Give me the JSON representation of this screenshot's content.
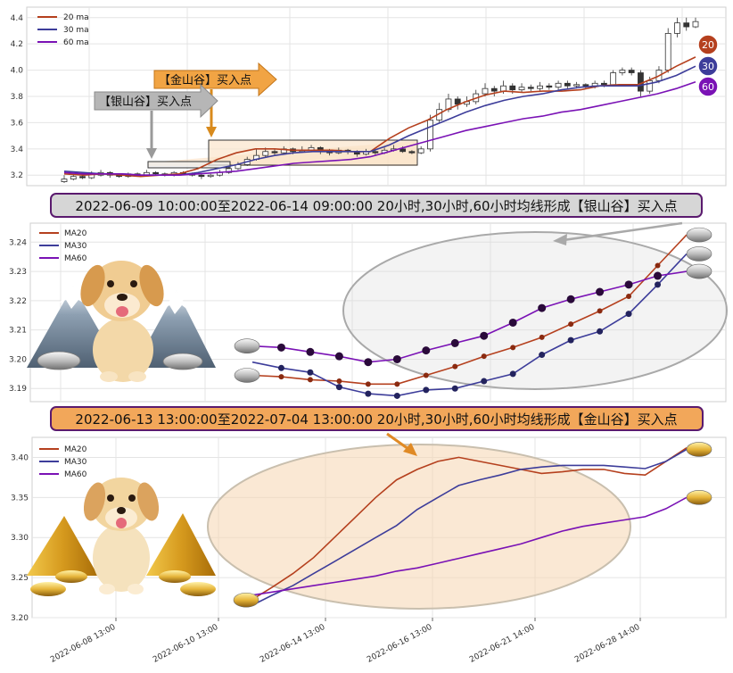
{
  "chart_data": [
    {
      "type": "line",
      "panel": "top",
      "note": "candlestick price with moving averages",
      "y_ticks": [
        "3.2",
        "3.4",
        "3.6",
        "3.8",
        "4.0",
        "4.2",
        "4.4"
      ],
      "ylim": [
        3.12,
        4.48
      ],
      "legend": [
        "20 ma",
        "30 ma",
        "60 ma"
      ],
      "legend_placement": "top-left",
      "grid": true,
      "colors": {
        "ma20": "#b5401e",
        "ma30": "#3d3d9a",
        "ma60": "#7a12b5"
      },
      "annotations": {
        "silver_arrow_label": "【银山谷】买入点",
        "gold_arrow_label": "【金山谷】买入点",
        "badges": [
          "20",
          "30",
          "60"
        ]
      },
      "series": [
        {
          "name": "20 ma",
          "points": [
            [
              0,
              3.21
            ],
            [
              20,
              3.2
            ],
            [
              40,
              3.21
            ],
            [
              60,
              3.2
            ],
            [
              80,
              3.19
            ],
            [
              100,
              3.2
            ],
            [
              120,
              3.21
            ],
            [
              140,
              3.25
            ],
            [
              160,
              3.32
            ],
            [
              180,
              3.37
            ],
            [
              200,
              3.4
            ],
            [
              220,
              3.4
            ],
            [
              240,
              3.39
            ],
            [
              260,
              3.39
            ],
            [
              280,
              3.39
            ],
            [
              300,
              3.38
            ],
            [
              320,
              3.38
            ],
            [
              340,
              3.48
            ],
            [
              360,
              3.56
            ],
            [
              380,
              3.62
            ],
            [
              400,
              3.7
            ],
            [
              420,
              3.76
            ],
            [
              440,
              3.81
            ],
            [
              460,
              3.84
            ],
            [
              480,
              3.83
            ],
            [
              500,
              3.84
            ],
            [
              520,
              3.84
            ],
            [
              540,
              3.85
            ],
            [
              560,
              3.88
            ],
            [
              580,
              3.89
            ],
            [
              600,
              3.89
            ],
            [
              620,
              3.95
            ],
            [
              640,
              4.03
            ],
            [
              660,
              4.1
            ]
          ]
        },
        {
          "name": "30 ma",
          "points": [
            [
              0,
              3.23
            ],
            [
              20,
              3.22
            ],
            [
              40,
              3.21
            ],
            [
              60,
              3.21
            ],
            [
              80,
              3.2
            ],
            [
              100,
              3.2
            ],
            [
              120,
              3.2
            ],
            [
              140,
              3.22
            ],
            [
              160,
              3.25
            ],
            [
              180,
              3.28
            ],
            [
              200,
              3.32
            ],
            [
              220,
              3.35
            ],
            [
              240,
              3.37
            ],
            [
              260,
              3.38
            ],
            [
              280,
              3.38
            ],
            [
              300,
              3.38
            ],
            [
              320,
              3.38
            ],
            [
              340,
              3.43
            ],
            [
              360,
              3.5
            ],
            [
              380,
              3.56
            ],
            [
              400,
              3.62
            ],
            [
              420,
              3.68
            ],
            [
              440,
              3.73
            ],
            [
              460,
              3.77
            ],
            [
              480,
              3.8
            ],
            [
              500,
              3.82
            ],
            [
              520,
              3.85
            ],
            [
              540,
              3.87
            ],
            [
              560,
              3.88
            ],
            [
              580,
              3.88
            ],
            [
              600,
              3.88
            ],
            [
              620,
              3.91
            ],
            [
              640,
              3.96
            ],
            [
              660,
              4.03
            ]
          ]
        },
        {
          "name": "60 ma",
          "points": [
            [
              0,
              3.22
            ],
            [
              20,
              3.21
            ],
            [
              40,
              3.21
            ],
            [
              60,
              3.21
            ],
            [
              80,
              3.2
            ],
            [
              100,
              3.2
            ],
            [
              120,
              3.2
            ],
            [
              140,
              3.21
            ],
            [
              160,
              3.22
            ],
            [
              180,
              3.23
            ],
            [
              200,
              3.25
            ],
            [
              220,
              3.27
            ],
            [
              240,
              3.29
            ],
            [
              260,
              3.3
            ],
            [
              280,
              3.31
            ],
            [
              300,
              3.32
            ],
            [
              320,
              3.34
            ],
            [
              340,
              3.38
            ],
            [
              360,
              3.42
            ],
            [
              380,
              3.46
            ],
            [
              400,
              3.5
            ],
            [
              420,
              3.54
            ],
            [
              440,
              3.57
            ],
            [
              460,
              3.6
            ],
            [
              480,
              3.63
            ],
            [
              500,
              3.65
            ],
            [
              520,
              3.68
            ],
            [
              540,
              3.7
            ],
            [
              560,
              3.73
            ],
            [
              580,
              3.76
            ],
            [
              600,
              3.79
            ],
            [
              620,
              3.82
            ],
            [
              640,
              3.86
            ],
            [
              660,
              3.91
            ]
          ]
        }
      ],
      "candles": [
        [
          3.15,
          3.17,
          3.2,
          3.14
        ],
        [
          3.17,
          3.19,
          3.21,
          3.16
        ],
        [
          3.19,
          3.18,
          3.22,
          3.17
        ],
        [
          3.18,
          3.21,
          3.23,
          3.17
        ],
        [
          3.2,
          3.22,
          3.24,
          3.19
        ],
        [
          3.22,
          3.2,
          3.23,
          3.18
        ],
        [
          3.2,
          3.19,
          3.21,
          3.18
        ],
        [
          3.19,
          3.21,
          3.22,
          3.18
        ],
        [
          3.21,
          3.2,
          3.22,
          3.19
        ],
        [
          3.2,
          3.22,
          3.24,
          3.19
        ],
        [
          3.22,
          3.21,
          3.23,
          3.2
        ],
        [
          3.21,
          3.2,
          3.22,
          3.19
        ],
        [
          3.2,
          3.22,
          3.23,
          3.19
        ],
        [
          3.22,
          3.21,
          3.23,
          3.2
        ],
        [
          3.21,
          3.2,
          3.22,
          3.19
        ],
        [
          3.2,
          3.19,
          3.21,
          3.17
        ],
        [
          3.19,
          3.2,
          3.21,
          3.18
        ],
        [
          3.2,
          3.22,
          3.24,
          3.19
        ],
        [
          3.22,
          3.25,
          3.27,
          3.21
        ],
        [
          3.25,
          3.28,
          3.3,
          3.24
        ],
        [
          3.28,
          3.32,
          3.34,
          3.27
        ],
        [
          3.32,
          3.35,
          3.4,
          3.31
        ],
        [
          3.35,
          3.38,
          3.41,
          3.34
        ],
        [
          3.38,
          3.37,
          3.4,
          3.35
        ],
        [
          3.37,
          3.4,
          3.42,
          3.36
        ],
        [
          3.4,
          3.38,
          3.41,
          3.36
        ],
        [
          3.38,
          3.39,
          3.42,
          3.37
        ],
        [
          3.39,
          3.41,
          3.43,
          3.38
        ],
        [
          3.41,
          3.38,
          3.42,
          3.36
        ],
        [
          3.38,
          3.37,
          3.4,
          3.35
        ],
        [
          3.37,
          3.39,
          3.41,
          3.36
        ],
        [
          3.39,
          3.38,
          3.4,
          3.36
        ],
        [
          3.38,
          3.36,
          3.39,
          3.34
        ],
        [
          3.36,
          3.38,
          3.4,
          3.35
        ],
        [
          3.38,
          3.37,
          3.39,
          3.35
        ],
        [
          3.37,
          3.39,
          3.41,
          3.36
        ],
        [
          3.39,
          3.4,
          3.43,
          3.38
        ],
        [
          3.4,
          3.38,
          3.42,
          3.37
        ],
        [
          3.38,
          3.37,
          3.39,
          3.36
        ],
        [
          3.37,
          3.4,
          3.42,
          3.36
        ],
        [
          3.4,
          3.62,
          3.66,
          3.38
        ],
        [
          3.62,
          3.7,
          3.75,
          3.6
        ],
        [
          3.7,
          3.78,
          3.82,
          3.68
        ],
        [
          3.78,
          3.74,
          3.8,
          3.7
        ],
        [
          3.74,
          3.76,
          3.8,
          3.72
        ],
        [
          3.76,
          3.82,
          3.85,
          3.74
        ],
        [
          3.82,
          3.86,
          3.9,
          3.8
        ],
        [
          3.86,
          3.84,
          3.88,
          3.8
        ],
        [
          3.84,
          3.88,
          3.92,
          3.82
        ],
        [
          3.88,
          3.85,
          3.9,
          3.82
        ],
        [
          3.85,
          3.87,
          3.9,
          3.83
        ],
        [
          3.87,
          3.86,
          3.89,
          3.84
        ],
        [
          3.86,
          3.88,
          3.91,
          3.84
        ],
        [
          3.88,
          3.87,
          3.9,
          3.85
        ],
        [
          3.87,
          3.9,
          3.92,
          3.85
        ],
        [
          3.9,
          3.88,
          3.92,
          3.86
        ],
        [
          3.88,
          3.89,
          3.91,
          3.86
        ],
        [
          3.89,
          3.88,
          3.9,
          3.86
        ],
        [
          3.88,
          3.9,
          3.92,
          3.86
        ],
        [
          3.9,
          3.89,
          3.92,
          3.87
        ],
        [
          3.89,
          3.98,
          4.0,
          3.88
        ],
        [
          3.98,
          4.0,
          4.02,
          3.96
        ],
        [
          4.0,
          3.98,
          4.02,
          3.96
        ],
        [
          3.98,
          3.84,
          4.0,
          3.8
        ],
        [
          3.84,
          3.92,
          3.95,
          3.82
        ],
        [
          3.92,
          4.0,
          4.03,
          3.9
        ],
        [
          4.0,
          4.28,
          4.32,
          3.98
        ],
        [
          4.28,
          4.36,
          4.4,
          4.25
        ],
        [
          4.36,
          4.33,
          4.4,
          4.3
        ],
        [
          4.33,
          4.37,
          4.4,
          4.32
        ]
      ]
    },
    {
      "type": "line",
      "panel": "middle",
      "title": "2022-06-09 10:00:00至2022-06-14 09:00:00 20小时,30小时,60小时均线形成【银山谷】买入点",
      "y_ticks": [
        "3.19",
        "3.20",
        "3.21",
        "3.22",
        "3.23",
        "3.24"
      ],
      "ylim": [
        3.1855,
        3.2465
      ],
      "legend": [
        "MA20",
        "MA30",
        "MA60"
      ],
      "legend_placement": "top-left",
      "grid": true,
      "series": [
        {
          "name": "MA20",
          "values": [
            3.1945,
            3.194,
            3.193,
            3.1925,
            3.1915,
            3.1915,
            3.1945,
            3.1975,
            3.201,
            3.204,
            3.2075,
            3.212,
            3.2165,
            3.2215,
            3.232,
            3.2425
          ]
        },
        {
          "name": "MA30",
          "values": [
            3.199,
            3.197,
            3.1955,
            3.1905,
            3.1882,
            3.1875,
            3.1895,
            3.19,
            3.1925,
            3.195,
            3.2015,
            3.2065,
            3.2095,
            3.2155,
            3.2255,
            3.236
          ]
        },
        {
          "name": "MA60",
          "values": [
            3.2045,
            3.204,
            3.2025,
            3.201,
            3.199,
            3.2,
            3.203,
            3.2055,
            3.208,
            3.2125,
            3.2175,
            3.2205,
            3.223,
            3.2255,
            3.2285,
            3.23
          ]
        }
      ]
    },
    {
      "type": "line",
      "panel": "bottom",
      "title": "2022-06-13 13:00:00至2022-07-04 13:00:00 20小时,30小时,60小时均线形成【金山谷】买入点",
      "y_ticks": [
        "3.20",
        "3.25",
        "3.30",
        "3.35",
        "3.40"
      ],
      "ylim": [
        3.2,
        3.425
      ],
      "x_tick_labels": [
        "2022-06-08 13:00",
        "2022-06-10 13:00",
        "2022-06-14 13:00",
        "2022-06-16 13:00",
        "2022-06-21 14:00",
        "2022-06-28 14:00"
      ],
      "legend": [
        "MA20",
        "MA30",
        "MA60"
      ],
      "legend_placement": "top-left",
      "grid": true,
      "series": [
        {
          "name": "MA20",
          "values": [
            3.222,
            3.238,
            3.255,
            3.275,
            3.3,
            3.325,
            3.35,
            3.372,
            3.385,
            3.395,
            3.4,
            3.395,
            3.39,
            3.385,
            3.38,
            3.382,
            3.385,
            3.385,
            3.38,
            3.378,
            3.395,
            3.412
          ]
        },
        {
          "name": "MA30",
          "values": [
            3.215,
            3.228,
            3.24,
            3.255,
            3.27,
            3.285,
            3.3,
            3.315,
            3.335,
            3.35,
            3.365,
            3.372,
            3.378,
            3.385,
            3.388,
            3.39,
            3.39,
            3.39,
            3.388,
            3.386,
            3.395,
            3.41
          ]
        },
        {
          "name": "MA60",
          "values": [
            3.228,
            3.232,
            3.236,
            3.24,
            3.244,
            3.248,
            3.252,
            3.258,
            3.262,
            3.268,
            3.274,
            3.28,
            3.286,
            3.292,
            3.3,
            3.308,
            3.314,
            3.318,
            3.322,
            3.326,
            3.336,
            3.35
          ]
        }
      ]
    }
  ]
}
